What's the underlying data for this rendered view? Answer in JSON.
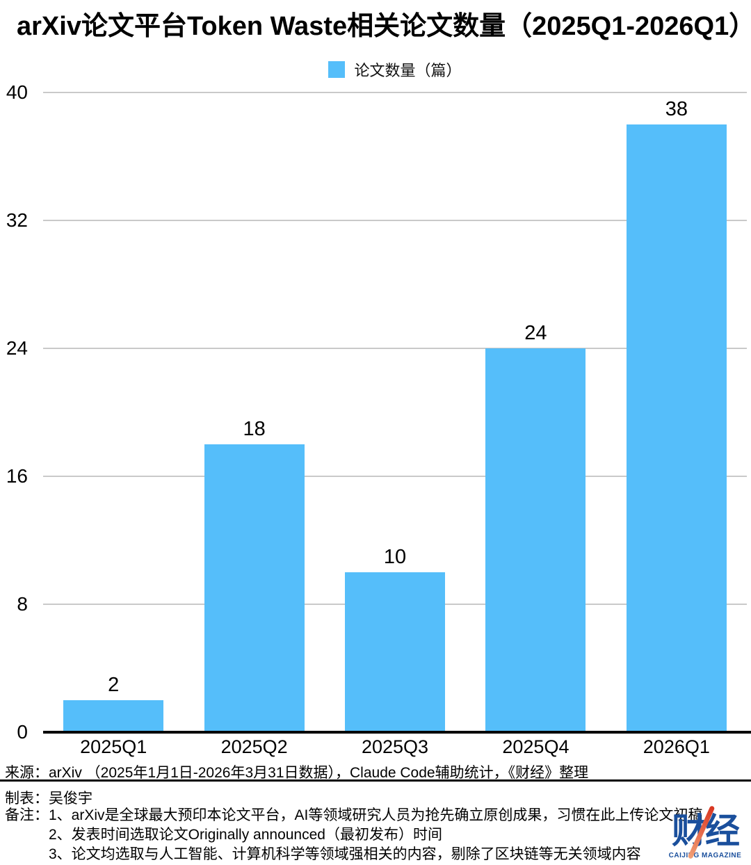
{
  "title": "arXiv论文平台Token Waste相关论文数量（2025Q1-2026Q1）",
  "legend": {
    "label": "论文数量（篇）"
  },
  "chart_data": {
    "type": "bar",
    "title": "arXiv论文平台Token Waste相关论文数量（2025Q1-2026Q1）",
    "series_name": "论文数量（篇）",
    "categories": [
      "2025Q1",
      "2025Q2",
      "2025Q3",
      "2025Q4",
      "2026Q1"
    ],
    "values": [
      2,
      18,
      10,
      24,
      38
    ],
    "xlabel": "",
    "ylabel": "",
    "ylim": [
      0,
      40
    ],
    "yticks": [
      0,
      8,
      16,
      24,
      32,
      40
    ],
    "grid": true,
    "legend_position": "top",
    "bar_color": "#55BEFA",
    "gridline_color": "#c9c9c9",
    "axis_color": "#000000"
  },
  "footer": {
    "source_label": "来源：",
    "source_text": "arXiv （2025年1月1日-2026年3月31日数据），Claude Code辅助统计，《财经》整理",
    "maker_label": "制表：",
    "maker_text": "吴俊宇",
    "notes_label": "备注：",
    "notes": [
      "1、arXiv是全球最大预印本论文平台，AI等领域研究人员为抢先确立原创成果，习惯在此上传论文初稿",
      "2、发表时间选取论文Originally announced（最初发布）时间",
      "3、论文均选取与人工智能、计算机科学等领域强相关的内容，剔除了区块链等无关领域内容"
    ]
  },
  "logo": {
    "text": "财经",
    "subtext": "CAIJING MAGAZINE",
    "brand_color": "#1a4f9c",
    "accent_color": "#d8341f"
  }
}
